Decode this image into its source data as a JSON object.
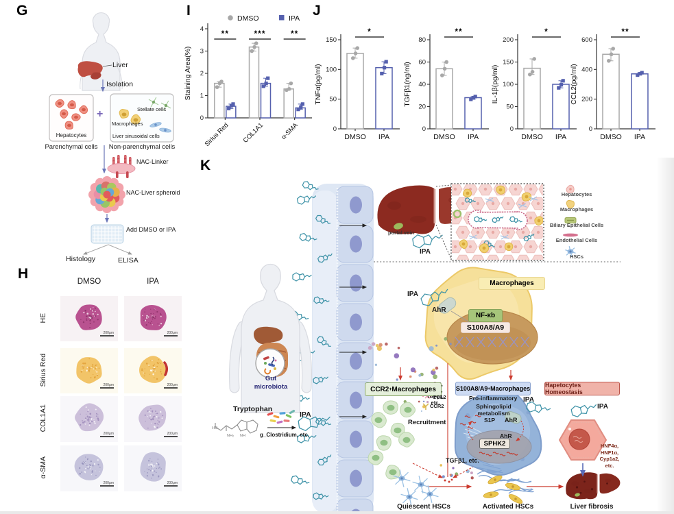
{
  "figure": {
    "g": "G",
    "h": "H",
    "i": "I",
    "j": "J",
    "k": "K"
  },
  "colors": {
    "ipa_blue": "#5560ae",
    "dmso_grey": "#a8a8a8",
    "teal": "#3f93a8",
    "accent_red": "#cc3b2f",
    "liver_red": "#8c2a20"
  },
  "panel_g": {
    "liver": "Liver",
    "isolation": "Isolation",
    "hepatocytes": "Hepatocytes",
    "parenchymal": "Parenchymal cells",
    "plus": "+",
    "stellate": "Stellate cells",
    "macrophages": "Macrophages",
    "sinusoidal": "Liver sinusoidal cells",
    "nonparenchymal": "Non-parenchymal cells",
    "nac_linker": "NAC-Linker",
    "spheroid": "NAC-Liver spheroid",
    "add": "Add DMSO or IPA",
    "histology": "Histology",
    "elisa": "ELISA"
  },
  "panel_h": {
    "columns": [
      "DMSO",
      "IPA"
    ],
    "rows": [
      {
        "label": "HE",
        "blob": "#b5498a",
        "dots": "#8a2f66",
        "bg": "#f7f2f4"
      },
      {
        "label": "Sirius Red",
        "blob": "#f1c160",
        "dots": "#dd9a30",
        "bg": "#fdfaef"
      },
      {
        "label": "COL1A1",
        "blob": "#c9bcd8",
        "dots": "#9682b4",
        "bg": "#f8f7fa"
      },
      {
        "label": "α-SMA",
        "blob": "#c2c0da",
        "dots": "#908eb8",
        "bg": "#f7f7fa"
      }
    ],
    "scale_bar": "200μm"
  },
  "chart_data": [
    {
      "id": "staining",
      "type": "bar",
      "mode": "grouped",
      "ylabel": "Staining Area(%)",
      "ylim": [
        0,
        4
      ],
      "yticks": [
        0,
        1,
        2,
        3,
        4
      ],
      "categories": [
        "Sirius Red",
        "COL1A1",
        "α-SMA"
      ],
      "series": [
        {
          "name": "DMSO",
          "marker": "circle",
          "color": "#a8a8a8",
          "values": [
            1.55,
            3.18,
            1.3
          ],
          "points": [
            [
              1.38,
              1.55,
              1.63
            ],
            [
              3.0,
              3.18,
              3.35
            ],
            [
              1.25,
              1.3,
              1.55
            ]
          ]
        },
        {
          "name": "IPA",
          "marker": "square",
          "color": "#5560ae",
          "values": [
            0.52,
            1.55,
            0.45
          ],
          "points": [
            [
              0.42,
              0.55,
              0.62
            ],
            [
              1.42,
              1.55,
              1.78
            ],
            [
              0.38,
              0.48,
              0.62
            ]
          ]
        }
      ],
      "significance": [
        "**",
        "***",
        "**"
      ],
      "legend_position": "top"
    },
    {
      "id": "tnfa",
      "type": "bar",
      "mode": "pair",
      "ylabel": "TNFα(pg/ml)",
      "ylim": [
        0,
        150
      ],
      "yticks": [
        0,
        50,
        100,
        150
      ],
      "categories": [
        "DMSO",
        "IPA"
      ],
      "series": [
        {
          "name": "DMSO",
          "marker": "circle",
          "color": "#a8a8a8",
          "values": [
            127
          ],
          "points": [
            [
              119,
              127,
              136
            ]
          ]
        },
        {
          "name": "IPA",
          "marker": "square",
          "color": "#5560ae",
          "values": [
            103
          ],
          "points": [
            [
              93,
              103,
              113
            ]
          ]
        }
      ],
      "significance": [
        "*"
      ]
    },
    {
      "id": "tgfb1",
      "type": "bar",
      "mode": "pair",
      "ylabel": "TGFβ1(ng/ml)",
      "ylim": [
        0,
        80
      ],
      "yticks": [
        0,
        20,
        40,
        60,
        80
      ],
      "categories": [
        "DMSO",
        "IPA"
      ],
      "series": [
        {
          "name": "DMSO",
          "marker": "circle",
          "color": "#a8a8a8",
          "values": [
            54
          ],
          "points": [
            [
              48,
              54,
              60
            ]
          ]
        },
        {
          "name": "IPA",
          "marker": "square",
          "color": "#5560ae",
          "values": [
            28
          ],
          "points": [
            [
              26.5,
              28,
              29
            ]
          ]
        }
      ],
      "significance": [
        "**"
      ]
    },
    {
      "id": "il1b",
      "type": "bar",
      "mode": "pair",
      "ylabel": "IL-1β(pg/ml)",
      "ylim": [
        0,
        200
      ],
      "yticks": [
        0,
        50,
        100,
        150,
        200
      ],
      "categories": [
        "DMSO",
        "IPA"
      ],
      "series": [
        {
          "name": "DMSO",
          "marker": "circle",
          "color": "#a8a8a8",
          "values": [
            136
          ],
          "points": [
            [
              122,
              128,
              157
            ]
          ]
        },
        {
          "name": "IPA",
          "marker": "square",
          "color": "#5560ae",
          "values": [
            100
          ],
          "points": [
            [
              92,
              99,
              108
            ]
          ]
        }
      ],
      "significance": [
        "*"
      ]
    },
    {
      "id": "ccl2",
      "type": "bar",
      "mode": "pair",
      "ylabel": "CCL2(pg/ml)",
      "ylim": [
        0,
        600
      ],
      "yticks": [
        0,
        200,
        400,
        600
      ],
      "categories": [
        "DMSO",
        "IPA"
      ],
      "series": [
        {
          "name": "DMSO",
          "marker": "circle",
          "color": "#a8a8a8",
          "values": [
            502
          ],
          "points": [
            [
              458,
              502,
              540
            ]
          ]
        },
        {
          "name": "IPA",
          "marker": "square",
          "color": "#5560ae",
          "values": [
            370
          ],
          "points": [
            [
              362,
              371,
              378
            ]
          ]
        }
      ],
      "significance": [
        "**"
      ]
    }
  ],
  "panel_k": {
    "portal_vein": "portal vein",
    "ipa": "IPA",
    "legend": [
      "Hepatocytes",
      "Macrophages",
      "Biliary Epithelial Cells",
      "Endothelial Cells",
      "HSCs"
    ],
    "gut_line1": "Gut",
    "gut_line2": "microbiota",
    "tryptophan": "Tryptophan",
    "trp_atoms": [
      "HO",
      "NH₂",
      "NH"
    ],
    "clostridium": "g_Clostridium, etc.",
    "macrophages_tag": "Macrophages",
    "ahr": "AhR",
    "nfkb": "NF-κb",
    "s100": "S100A8/A9",
    "cytokines": [
      "CCL2,",
      "TNFα,",
      "TGFβ1,",
      "etc."
    ],
    "ccr2_box": {
      "gene": "CCR2",
      "sup": "+",
      "rest": " Macrophages"
    },
    "s100_box": {
      "gene": "S100A8/A9",
      "sup": "+",
      "rest": " Macrophages"
    },
    "ccl2": "CCL2",
    "ccr2": "CCR2",
    "recruitment": "Recruitment",
    "pro_inflammatory": "Pro-inflammatory",
    "sphingolipid": "Sphingolipid",
    "metabolism": "metabolism",
    "s1p": "S1P",
    "sphk2": "SPHK2",
    "tgfb_etc": "TGFβ1, etc.",
    "homeostasis_box": "Hapetocytes Homeostasis",
    "hnf": [
      "HNF4α,",
      "HNF1α,",
      "Cyp1a2,",
      "etc."
    ],
    "quiescent": "Quiescent HSCs",
    "activated": "Activated HSCs",
    "fibrosis": "Liver fibrosis"
  }
}
